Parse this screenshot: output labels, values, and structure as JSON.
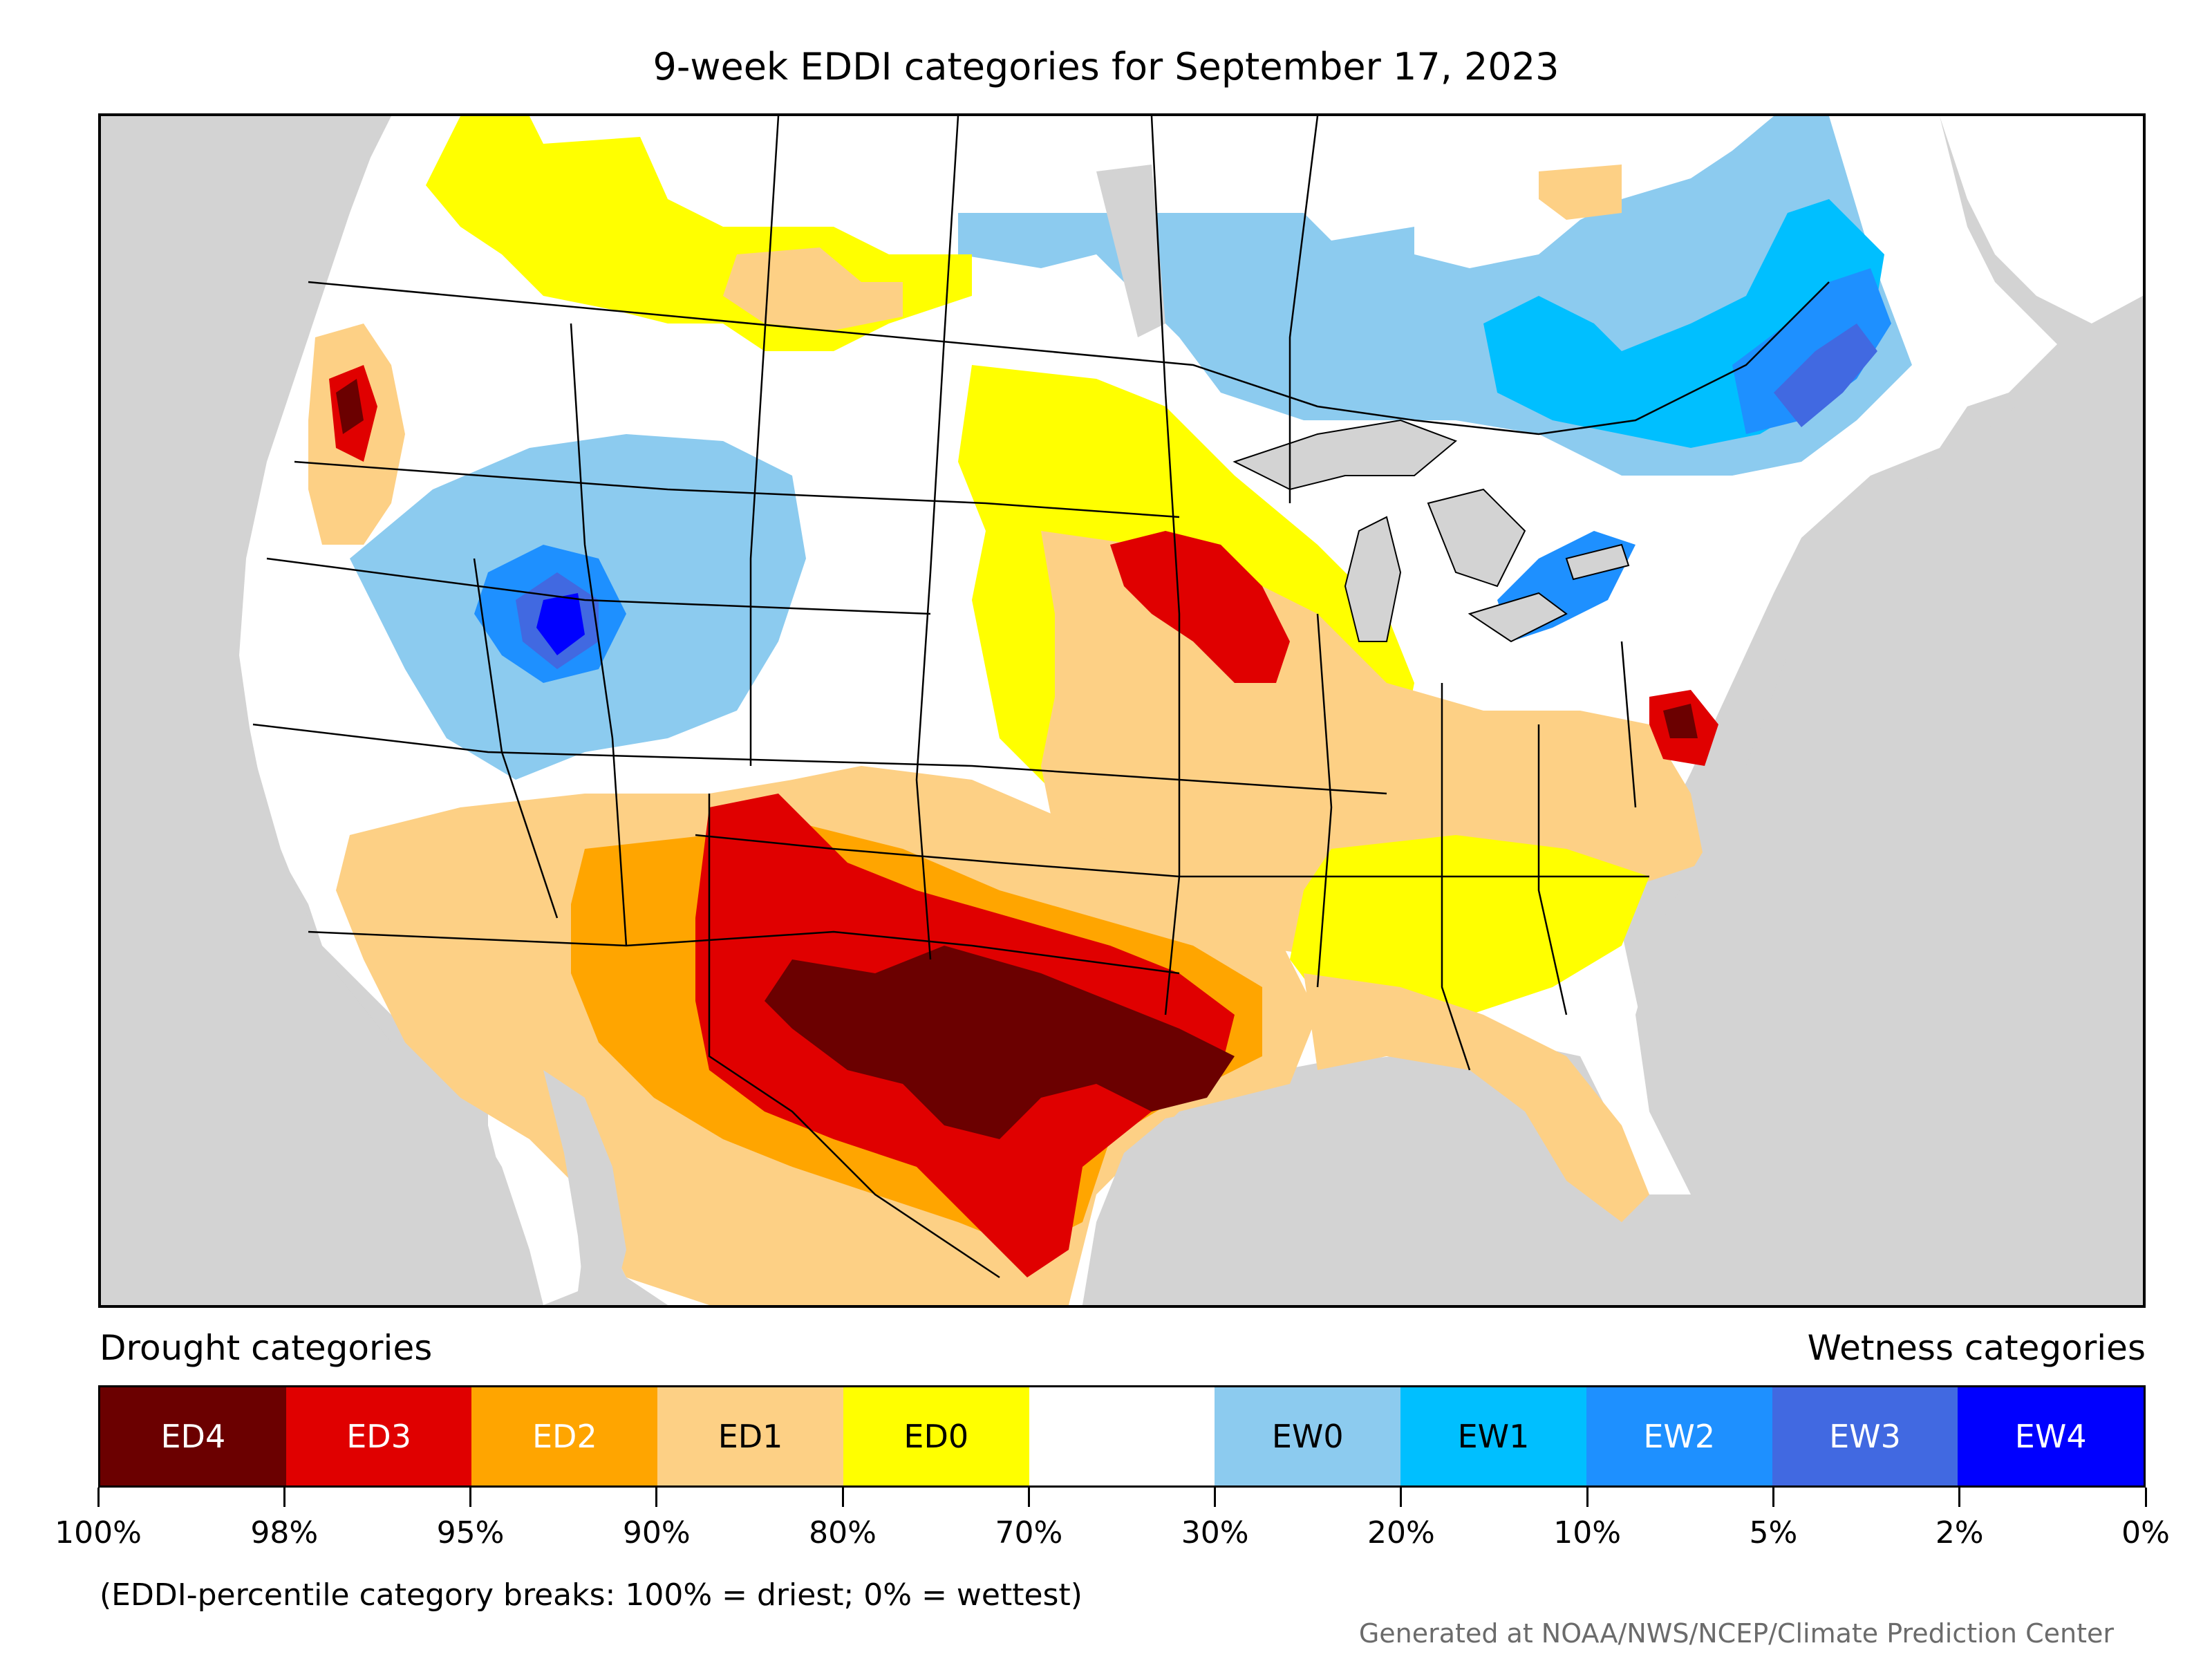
{
  "title": "9-week EDDI categories for September 17, 2023",
  "legend": {
    "drought_label": "Drought categories",
    "wetness_label": "Wetness categories",
    "categories": [
      {
        "label": "ED4",
        "color": "#6b0000",
        "text_color": "#ffffff"
      },
      {
        "label": "ED3",
        "color": "#e00000",
        "text_color": "#ffffff"
      },
      {
        "label": "ED2",
        "color": "#ffa500",
        "text_color": "#ffffff"
      },
      {
        "label": "ED1",
        "color": "#fdd085",
        "text_color": "#000000"
      },
      {
        "label": "ED0",
        "color": "#ffff00",
        "text_color": "#000000"
      },
      {
        "label": "",
        "color": "#ffffff",
        "text_color": "#000000"
      },
      {
        "label": "EW0",
        "color": "#8ccbef",
        "text_color": "#000000"
      },
      {
        "label": "EW1",
        "color": "#00bfff",
        "text_color": "#000000"
      },
      {
        "label": "EW2",
        "color": "#1e90ff",
        "text_color": "#ffffff"
      },
      {
        "label": "EW3",
        "color": "#4169e1",
        "text_color": "#ffffff"
      },
      {
        "label": "EW4",
        "color": "#0000ff",
        "text_color": "#ffffff"
      }
    ],
    "breaks": [
      "100%",
      "98%",
      "95%",
      "90%",
      "80%",
      "70%",
      "30%",
      "20%",
      "10%",
      "5%",
      "2%",
      "0%"
    ]
  },
  "note": "(EDDI-percentile category breaks: 100% = driest; 0% = wettest)",
  "credit": "Generated at NOAA/NWS/NCEP/Climate Prediction Center",
  "map": {
    "background_color": "#d3d3d3",
    "land_color": "#ffffff",
    "border_color": "#000000"
  }
}
